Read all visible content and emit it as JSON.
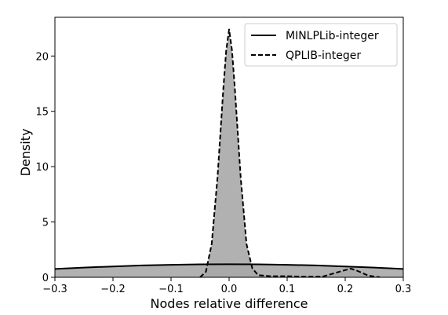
{
  "chart_data": {
    "type": "area",
    "xlabel": "Nodes relative difference",
    "ylabel": "Density",
    "xlim": [
      -0.3,
      0.3
    ],
    "ylim": [
      0,
      23.5
    ],
    "xticks": [
      -0.3,
      -0.2,
      -0.1,
      0.0,
      0.1,
      0.2,
      0.3
    ],
    "xtick_labels": [
      "−0.3",
      "−0.2",
      "−0.1",
      "0.0",
      "0.1",
      "0.2",
      "0.3"
    ],
    "yticks": [
      0,
      5,
      10,
      15,
      20
    ],
    "ytick_labels": [
      "0",
      "5",
      "10",
      "15",
      "20"
    ],
    "grid": false,
    "legend_position": "top-right",
    "series": [
      {
        "name": "MINLPLib-integer",
        "line_style": "solid",
        "fill_color": "#a9a9a9",
        "x": [
          -0.3,
          -0.25,
          -0.2,
          -0.15,
          -0.1,
          -0.05,
          0.0,
          0.05,
          0.1,
          0.15,
          0.2,
          0.25,
          0.3
        ],
        "y": [
          0.75,
          0.88,
          0.98,
          1.07,
          1.13,
          1.17,
          1.18,
          1.17,
          1.13,
          1.07,
          0.98,
          0.88,
          0.75
        ]
      },
      {
        "name": "QPLIB-integer",
        "line_style": "dashed",
        "fill_color": "#a9a9a9",
        "x": [
          -0.05,
          -0.04,
          -0.03,
          -0.02,
          -0.01,
          -0.005,
          0.0,
          0.005,
          0.01,
          0.02,
          0.03,
          0.04,
          0.05,
          0.07,
          0.1,
          0.13,
          0.16,
          0.18,
          0.2,
          0.21,
          0.22,
          0.24,
          0.26
        ],
        "y": [
          0.0,
          0.5,
          3.0,
          9.0,
          17.0,
          20.5,
          22.4,
          20.5,
          17.0,
          9.0,
          3.0,
          0.8,
          0.2,
          0.1,
          0.1,
          0.05,
          0.05,
          0.35,
          0.65,
          0.78,
          0.6,
          0.15,
          0.0
        ]
      }
    ]
  }
}
